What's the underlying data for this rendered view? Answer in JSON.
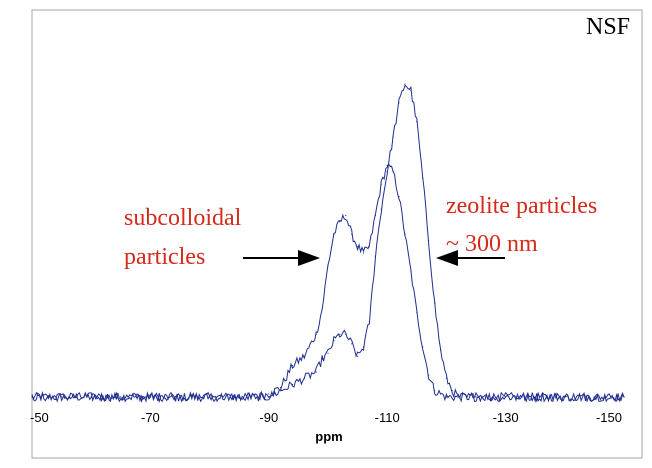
{
  "corner_text": "NSF",
  "colors": {
    "trace": "#1f2e8f",
    "annotation": "#d42a1a",
    "frame": "#a6a6a6",
    "arrow": "#000000"
  },
  "chart_data": {
    "type": "line",
    "xlabel": "ppm",
    "ylabel": "",
    "title": "",
    "xlim": [
      -50,
      -150
    ],
    "x_reversed": true,
    "ylim": [
      0,
      1.0
    ],
    "x_ticks": [
      -50,
      -70,
      -90,
      -110,
      -130,
      -150
    ],
    "x_tick_labels": [
      "-50",
      "-70",
      "-90",
      "-110",
      "-130",
      "-150"
    ],
    "series": [
      {
        "name": "",
        "x": [
          -50,
          -55,
          -60,
          -65,
          -70,
          -75,
          -80,
          -85,
          -88,
          -90,
          -92,
          -94,
          -96,
          -98,
          -99,
          -100,
          -101,
          -102,
          -103,
          -104,
          -105,
          -106,
          -107,
          -108,
          -109,
          -110,
          -111,
          -112,
          -113,
          -114,
          -115,
          -116,
          -117,
          -118,
          -119,
          -120,
          -122,
          -125,
          -130,
          -135,
          -140,
          -145,
          -150
        ],
        "y": [
          0.0,
          0.0,
          0.0,
          0.0,
          0.0,
          0.0,
          0.0,
          0.0,
          0.0,
          0.01,
          0.03,
          0.1,
          0.13,
          0.2,
          0.28,
          0.42,
          0.52,
          0.56,
          0.58,
          0.52,
          0.48,
          0.46,
          0.48,
          0.58,
          0.68,
          0.74,
          0.72,
          0.64,
          0.52,
          0.4,
          0.27,
          0.16,
          0.07,
          0.02,
          0.01,
          0.0,
          0.0,
          0.0,
          0.0,
          0.0,
          0.0,
          0.0,
          0.0
        ]
      },
      {
        "name": "",
        "x": [
          -50,
          -55,
          -60,
          -65,
          -70,
          -75,
          -80,
          -85,
          -88,
          -90,
          -92,
          -94,
          -96,
          -98,
          -99,
          -100,
          -101,
          -102,
          -103,
          -104,
          -105,
          -106,
          -107,
          -108,
          -109,
          -110,
          -111,
          -112,
          -113,
          -114,
          -115,
          -116,
          -117,
          -118,
          -119,
          -120,
          -121,
          -122,
          -125,
          -130,
          -135,
          -140,
          -145,
          -150
        ],
        "y": [
          0.0,
          0.0,
          0.0,
          0.0,
          0.0,
          0.0,
          0.0,
          0.0,
          0.0,
          0.0,
          0.02,
          0.04,
          0.06,
          0.08,
          0.12,
          0.14,
          0.18,
          0.2,
          0.2,
          0.17,
          0.13,
          0.16,
          0.24,
          0.45,
          0.6,
          0.72,
          0.83,
          0.94,
          1.0,
          0.98,
          0.88,
          0.7,
          0.5,
          0.3,
          0.15,
          0.06,
          0.02,
          0.0,
          0.0,
          0.0,
          0.0,
          0.0,
          0.0,
          0.0
        ]
      }
    ],
    "annotations": [
      {
        "text_lines": [
          "subcolloidal",
          "particles"
        ],
        "arrow_points_to_x": -101,
        "arrow_points_to_y": 0.52
      },
      {
        "text_lines": [
          "zeolite particles",
          "~ 300 nm"
        ],
        "arrow_points_to_x": -116,
        "arrow_points_to_y": 0.52
      }
    ]
  }
}
